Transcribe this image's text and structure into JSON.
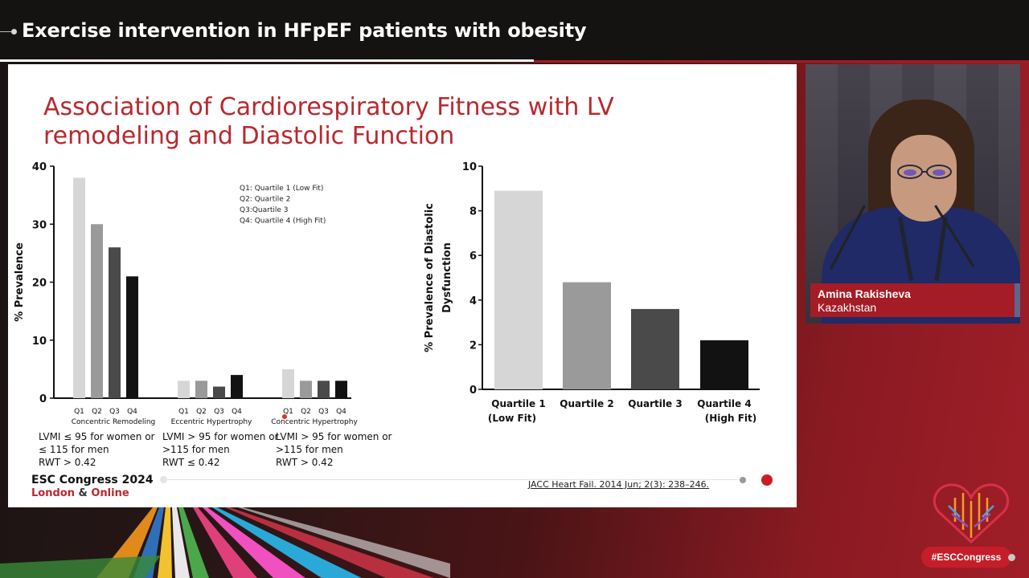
{
  "broadcast": {
    "title": "Exercise intervention in HFpEF patients with obesity"
  },
  "slide": {
    "title_line1": "Association of Cardiorespiratory Fitness with LV",
    "title_line2": "remodeling and Diastolic Function",
    "definitions": [
      {
        "line1": "LVMI ≤ 95 for women or",
        "line2": "≤ 115 for men",
        "line3": "RWT > 0.42"
      },
      {
        "line1": "LVMI > 95 for women or",
        "line2": ">115 for men",
        "line3": "RWT ≤ 0.42"
      },
      {
        "line1": "LVMI > 95 for women or",
        "line2": ">115 for men",
        "line3": "RWT > 0.42"
      }
    ],
    "logo_line1": "ESC Congress 2024",
    "logo_line2a": "London",
    "logo_amp": "&",
    "logo_line2b": "Online",
    "citation": "JACC Heart Fail. 2014 Jun; 2(3): 238–246."
  },
  "speaker": {
    "name": "Amina Rakisheva",
    "country": "Kazakhstan"
  },
  "footer": {
    "hashtag": "#ESCCongress"
  },
  "colors": {
    "accent": "#b8282e",
    "brand_red": "#c51e2a",
    "q1": "#d6d6d6",
    "q2": "#9a9a9a",
    "q3": "#4a4a4a",
    "q4": "#121212"
  },
  "chart_data": [
    {
      "type": "bar",
      "ylabel": "% Prevalence",
      "ylim": [
        0,
        40
      ],
      "yticks": [
        "0",
        "10",
        "20",
        "30",
        "40"
      ],
      "legend": [
        "Q1: Quartile 1 (Low Fit)",
        "Q2: Quartile 2",
        "Q3:Quartile 3",
        "Q4: Quartile 4 (High Fit)"
      ],
      "legend_position": "top-right",
      "groups": [
        {
          "name": "Concentric Remodeling",
          "categories": [
            "Q1",
            "Q2",
            "Q3",
            "Q4"
          ],
          "values": [
            38,
            30,
            26,
            21
          ]
        },
        {
          "name": "Eccentric  Hypertrophy",
          "categories": [
            "Q1",
            "Q2",
            "Q3",
            "Q4"
          ],
          "values": [
            3,
            3,
            2,
            4
          ]
        },
        {
          "name": "Concentric Hypertrophy",
          "categories": [
            "Q1",
            "Q2",
            "Q3",
            "Q4"
          ],
          "values": [
            5,
            3,
            3,
            3
          ]
        }
      ]
    },
    {
      "type": "bar",
      "ylabel_line1": "% Prevalence of Diastolic",
      "ylabel_line2": "Dysfunction",
      "ylim": [
        0,
        10
      ],
      "yticks": [
        "0",
        "2",
        "4",
        "6",
        "8",
        "10"
      ],
      "categories": [
        {
          "line1": "Quartile 1",
          "line2": "(Low Fit)"
        },
        {
          "line1": "Quartile 2",
          "line2": ""
        },
        {
          "line1": "Quartile 3",
          "line2": ""
        },
        {
          "line1": "Quartile 4",
          "line2": "(High Fit)"
        }
      ],
      "values": [
        8.9,
        4.8,
        3.6,
        2.2
      ]
    }
  ]
}
